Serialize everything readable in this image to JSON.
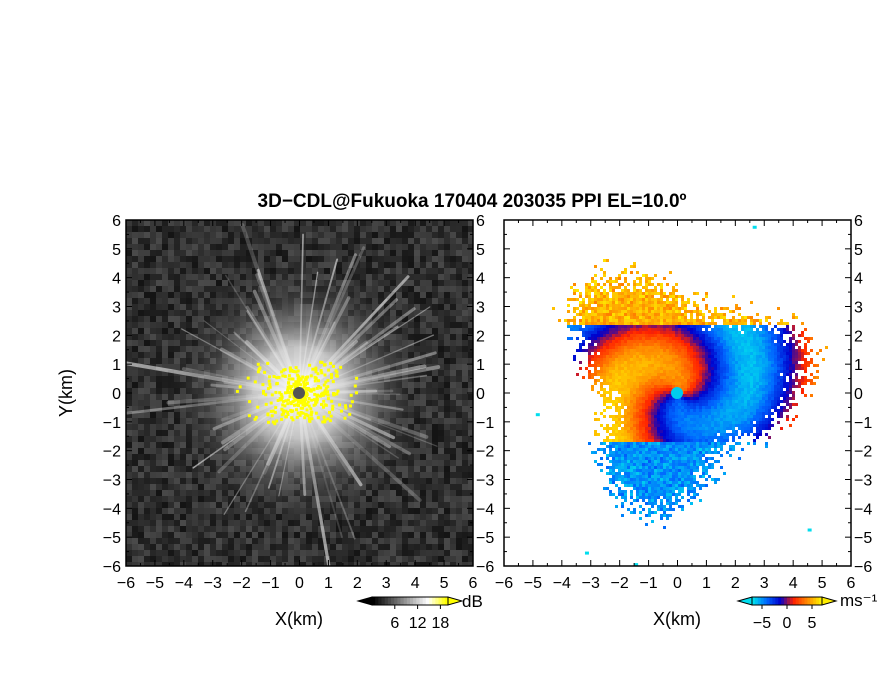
{
  "title": "3D−CDL@Fukuoka 170404 203035 PPI EL=10.0º",
  "chart_data": [
    {
      "type": "heatmap",
      "panel": "left",
      "xlabel": "X(km)",
      "ylabel": "Y(km)",
      "xlim": [
        -6,
        6
      ],
      "ylim": [
        -6,
        6
      ],
      "x_ticks": [
        "−6",
        "−5",
        "−4",
        "−3",
        "−2",
        "−1",
        "0",
        "1",
        "2",
        "3",
        "4",
        "5",
        "6"
      ],
      "y_ticks": [
        "6",
        "5",
        "4",
        "3",
        "2",
        "1",
        "0",
        "−1",
        "−2",
        "−3",
        "−4",
        "−5",
        "−6"
      ],
      "colorbar": {
        "unit": "dB",
        "ticks": [
          "6",
          "12",
          "18"
        ],
        "range": [
          0,
          20
        ],
        "colors": [
          "#000000",
          "#555555",
          "#aaaaaa",
          "#ffffff",
          "#ffff00"
        ]
      },
      "radar_center_color": "#555555",
      "echo_color": "#ffff00"
    },
    {
      "type": "heatmap",
      "panel": "right",
      "xlabel": "X(km)",
      "xlim": [
        -6,
        6
      ],
      "ylim": [
        -6,
        6
      ],
      "x_ticks": [
        "−6",
        "−5",
        "−4",
        "−3",
        "−2",
        "−1",
        "0",
        "1",
        "2",
        "3",
        "4",
        "5",
        "6"
      ],
      "y_ticks": [
        "6",
        "5",
        "4",
        "3",
        "2",
        "1",
        "0",
        "−1",
        "−2",
        "−3",
        "−4",
        "−5",
        "−6"
      ],
      "colorbar": {
        "unit": "ms⁻¹",
        "ticks": [
          "−5",
          "0",
          "5"
        ],
        "range": [
          -7,
          7
        ],
        "colors": [
          "#00ddee",
          "#0066ff",
          "#0000cc",
          "#ff2200",
          "#ff8800",
          "#ffee00"
        ]
      },
      "radar_center_color": "#00ccee"
    }
  ]
}
